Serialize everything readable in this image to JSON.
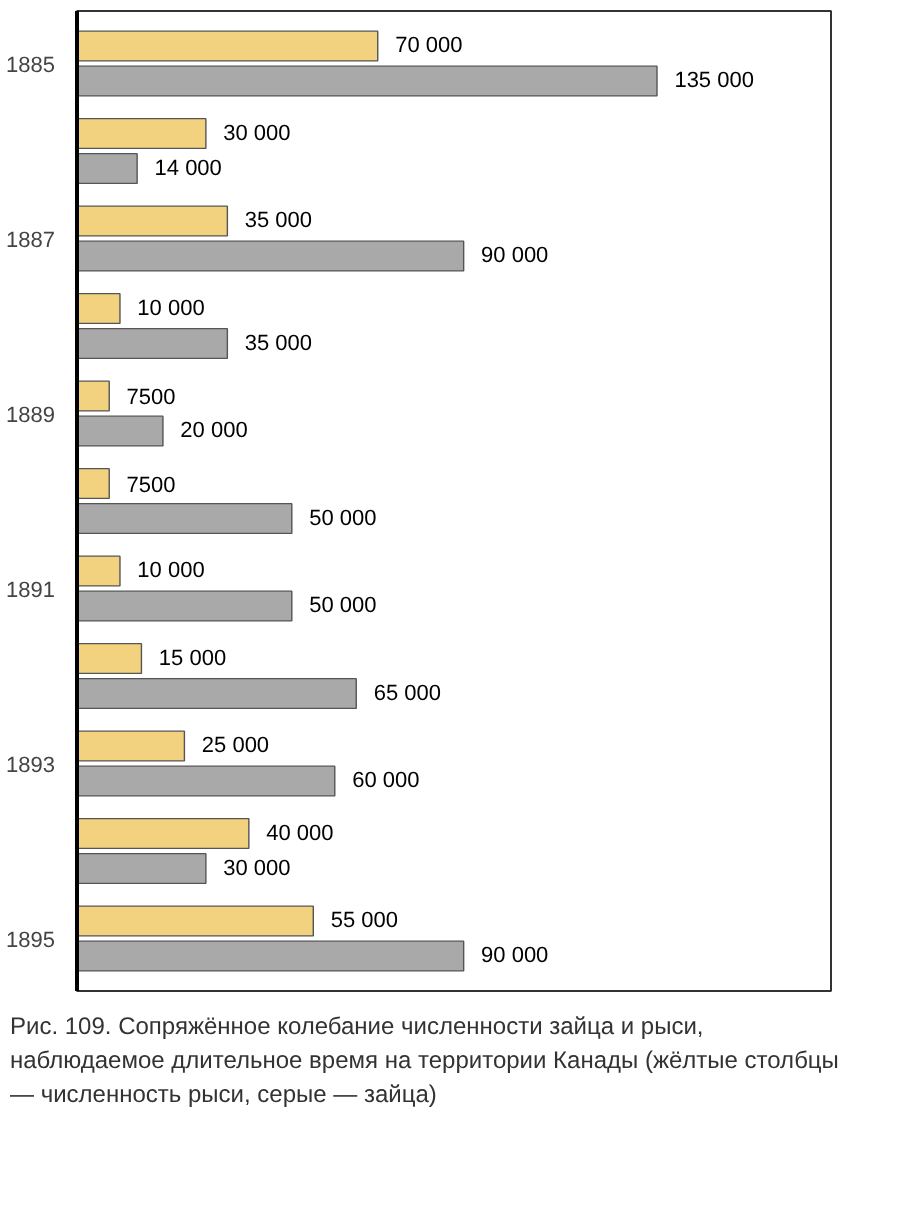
{
  "chart_data": {
    "type": "bar",
    "orientation": "horizontal",
    "categories": [
      "1885",
      null,
      "1887",
      null,
      "1889",
      null,
      "1891",
      null,
      "1893",
      null,
      "1895"
    ],
    "series": [
      {
        "color": "#f2d27e",
        "values": [
          70000,
          30000,
          35000,
          10000,
          7500,
          7500,
          10000,
          15000,
          25000,
          40000,
          55000
        ],
        "value_labels": [
          "70 000",
          "30 000",
          "35 000",
          "10 000",
          "7500",
          "7500",
          "10 000",
          "15 000",
          "25 000",
          "40 000",
          "55 000"
        ]
      },
      {
        "color": "#a9a9a9",
        "values": [
          135000,
          14000,
          90000,
          35000,
          20000,
          50000,
          50000,
          65000,
          60000,
          30000,
          90000
        ],
        "value_labels": [
          "135 000",
          "14 000",
          "90 000",
          "35 000",
          "20 000",
          "50 000",
          "50 000",
          "65 000",
          "60 000",
          "30 000",
          "90 000"
        ]
      }
    ],
    "annotations": [
      "Рис. 109. Сопряжённое колебание численности зайца и рыси, наблюдаемое длительное время на территории Канады (жёлтые столбцы — численность рыси, серые — зайца)"
    ]
  }
}
